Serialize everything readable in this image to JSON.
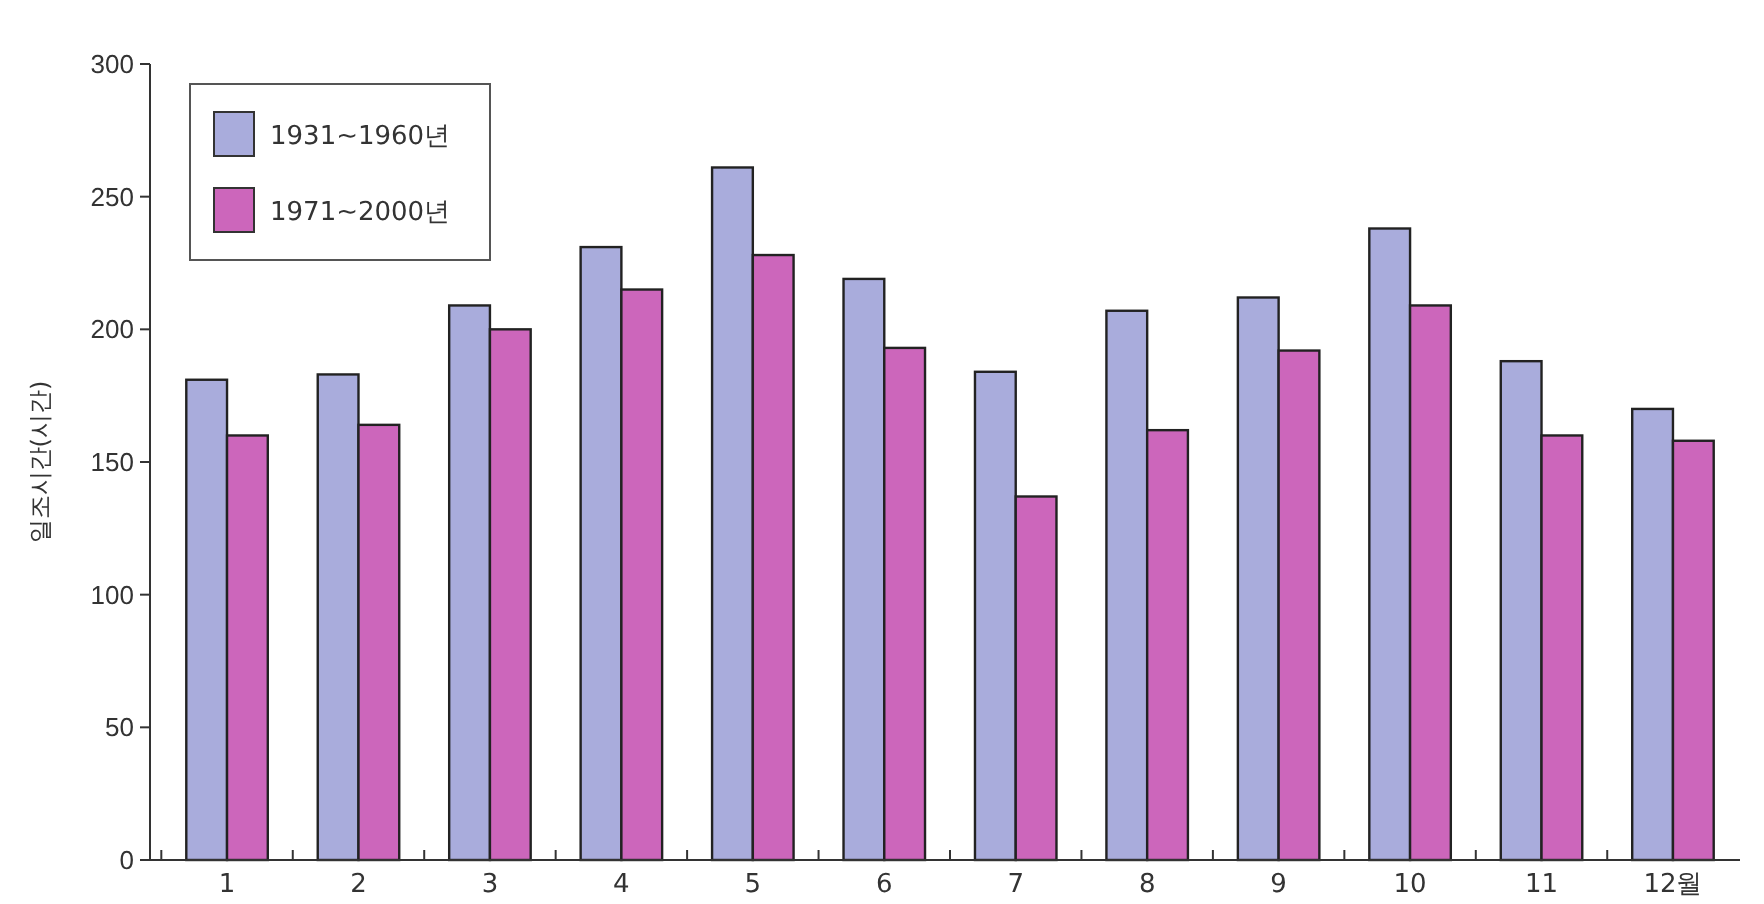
{
  "chart_data": {
    "type": "bar",
    "ylabel": "일조시간(시간)",
    "categories": [
      "1",
      "2",
      "3",
      "4",
      "5",
      "6",
      "7",
      "8",
      "9",
      "10",
      "11",
      "12월"
    ],
    "series": [
      {
        "name": "1931~1960년",
        "color": "#a9acdc",
        "values": [
          181,
          183,
          209,
          231,
          261,
          219,
          184,
          207,
          212,
          238,
          188,
          170
        ]
      },
      {
        "name": "1971~2000년",
        "color": "#cc66bb",
        "values": [
          160,
          164,
          200,
          215,
          228,
          193,
          137,
          162,
          192,
          209,
          160,
          158
        ]
      }
    ],
    "ylim": [
      0,
      300
    ],
    "yticks": [
      0,
      50,
      100,
      150,
      200,
      250,
      300
    ],
    "grid": false,
    "legend": "top left"
  }
}
